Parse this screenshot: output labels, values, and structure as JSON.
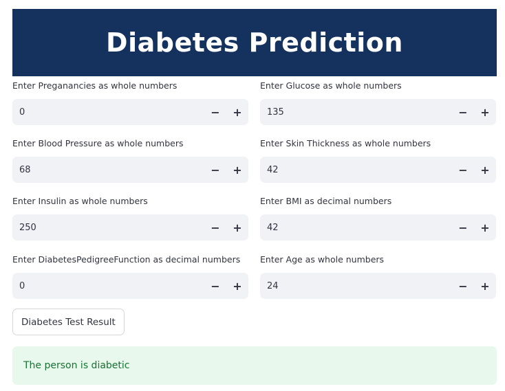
{
  "header": {
    "title": "Diabetes Prediction"
  },
  "fields": [
    {
      "label": "Enter Preganancies as whole numbers",
      "value": "0"
    },
    {
      "label": "Enter Glucose as whole numbers",
      "value": "135"
    },
    {
      "label": "Enter Blood Pressure as whole numbers",
      "value": "68"
    },
    {
      "label": "Enter Skin Thickness as whole numbers",
      "value": "42"
    },
    {
      "label": "Enter Insulin as whole numbers",
      "value": "250"
    },
    {
      "label": "Enter BMI as decimal numbers",
      "value": "42"
    },
    {
      "label": "Enter DiabetesPedigreeFunction as decimal numbers",
      "value": "0"
    },
    {
      "label": "Enter Age as whole numbers",
      "value": "24"
    }
  ],
  "stepper": {
    "minus": "−",
    "plus": "+"
  },
  "actions": {
    "test_button": "Diabetes Test Result"
  },
  "result": {
    "message": "The person is diabetic"
  },
  "colors": {
    "banner": "#14325d",
    "result_bg": "#e8f8ec",
    "result_text": "#177233",
    "input_bg": "#f0f2f6"
  }
}
